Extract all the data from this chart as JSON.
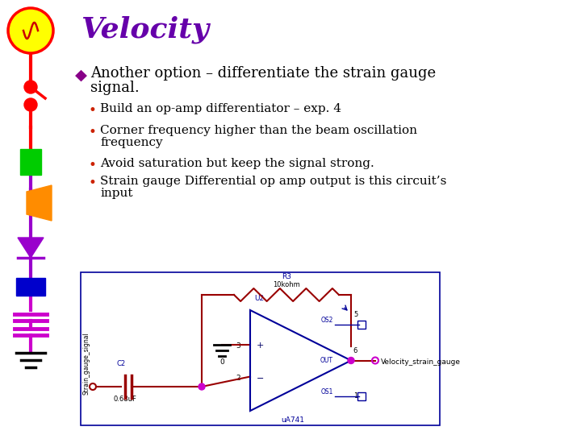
{
  "title": "Velocity",
  "title_color": "#6600AA",
  "title_fontsize": 26,
  "bg_color": "#FFFFFF",
  "bullet1_line1": "Another option – differentiate the strain gauge",
  "bullet1_line2": "signal.",
  "bullet1_marker": "◆",
  "bullet1_marker_color": "#880088",
  "sub_bullets": [
    "Build an op-amp differentiator – exp. 4",
    "Corner frequency higher than the beam oscillation\nfrequency",
    "Avoid saturation but keep the signal strong.",
    "Strain gauge Differential op amp output is this circuit’s\ninput"
  ],
  "sub_bullet_color": "#000000",
  "sub_bullet_marker_color": "#CC2200",
  "text_fontsize": 13,
  "sub_fontsize": 11
}
